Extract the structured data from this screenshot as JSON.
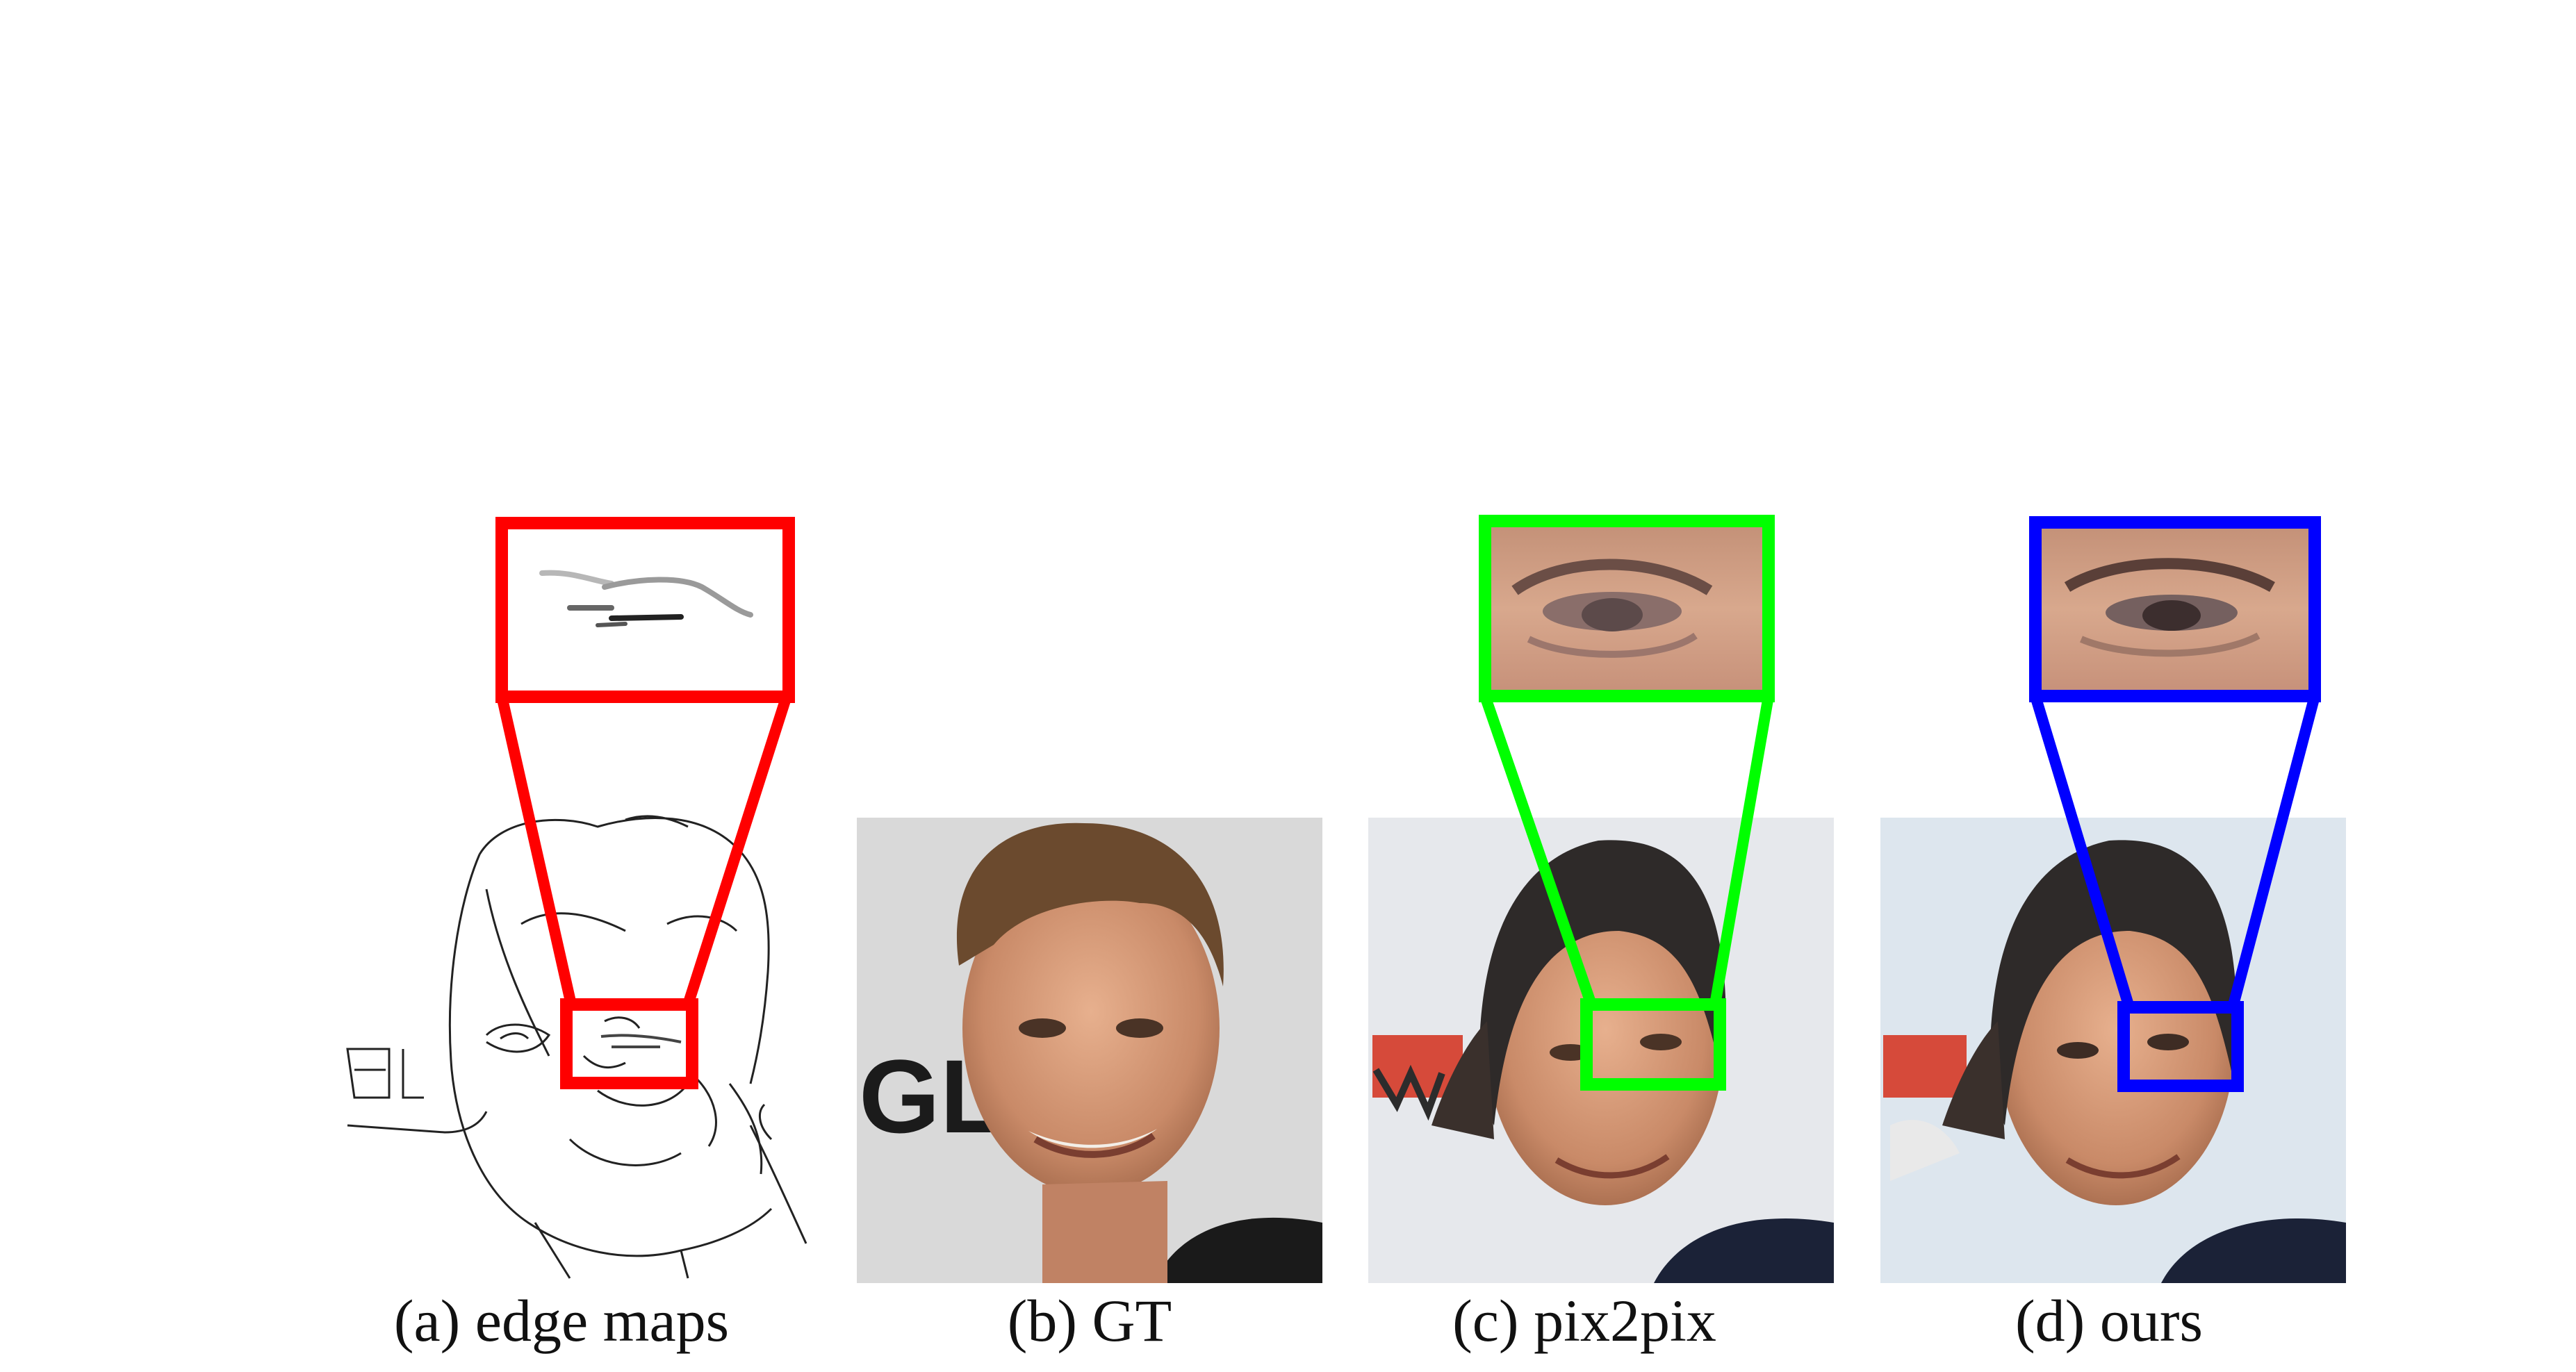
{
  "figure": {
    "panels": [
      {
        "id": "a",
        "caption": "(a) edge maps",
        "content": "edge-map-of-face",
        "zoom_color": "#ff0000"
      },
      {
        "id": "b",
        "caption": "(b) GT",
        "content": "face-photo-ground-truth",
        "watermark_text": "GLA"
      },
      {
        "id": "c",
        "caption": "(c) pix2pix",
        "content": "face-photo-pix2pix",
        "zoom_color": "#00ff00"
      },
      {
        "id": "d",
        "caption": "(d) ours",
        "content": "face-photo-ours",
        "zoom_color": "#0000ff"
      }
    ]
  }
}
